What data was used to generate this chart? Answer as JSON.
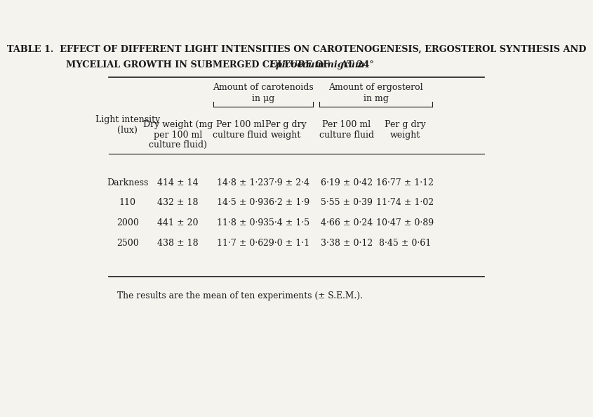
{
  "title_line1": "T«lE 1.  Effect of different light intensities on carotenogenesis, ergosterol synthesis and",
  "title_line2": "mycelial growth in submerged culture of —Epicoccum nigrum— at 24°",
  "col_headers": {
    "col1": [
      "Light intensity",
      "(lux)"
    ],
    "col2": [
      "Dry weight (mg",
      "per 100 ml",
      "culture fluid)"
    ],
    "carotenoids_header": "Amount of carotenoids",
    "carotenoids_unit": "in μg",
    "col3": [
      "Per 100 ml",
      "culture fluid"
    ],
    "col4": [
      "Per g dry",
      "weight"
    ],
    "ergosterol_header": "Amount of ergosterol",
    "ergosterol_unit": "in mg",
    "col5": [
      "Per 100 ml",
      "culture fluid"
    ],
    "col6": [
      "Per g dry",
      "weight"
    ]
  },
  "rows": [
    [
      "Darkness",
      "414 ± 14",
      "14·8 ± 1·2",
      "37·9 ± 2·4",
      "6·19 ± 0·42",
      "16·77 ± 1·12"
    ],
    [
      "110",
      "432 ± 18",
      "14·5 ± 0·9",
      "36·2 ± 1·9",
      "5·55 ± 0·39",
      "11·74 ± 1·02"
    ],
    [
      "2000",
      "441 ± 20",
      "11·8 ± 0·9",
      "35·4 ± 1·5",
      "4·66 ± 0·24",
      "10·47 ± 0·89"
    ],
    [
      "2500",
      "438 ± 18",
      "11·7 ± 0·6",
      "29·0 ± 1·1",
      "3·38 ± 0·12",
      "8·45 ± 0·61"
    ]
  ],
  "footnote": "The results are the mean of ten experiments (± S.E.M.).",
  "bg_color": "#f5f3ee",
  "text_color": "#1a1a1a",
  "title_fontsize": 9.5,
  "header_fontsize": 9,
  "cell_fontsize": 9
}
